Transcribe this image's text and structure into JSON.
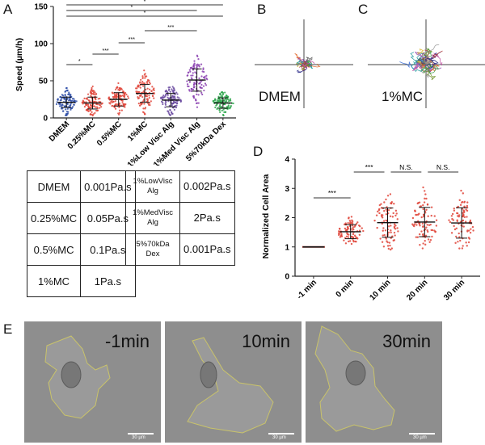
{
  "panel_labels": {
    "A": "A",
    "B": "B",
    "C": "C",
    "D": "D",
    "E": "E"
  },
  "chart_data": [
    {
      "id": "A",
      "type": "scatter",
      "title": "",
      "ylabel": "Speed (µm/h)",
      "xlabel": "",
      "ylim": [
        0,
        150
      ],
      "yticks": [
        0,
        50,
        100,
        150
      ],
      "categories": [
        "DMEM",
        "0.25%MC",
        "0.5%MC",
        "1%MC",
        "1%Low Visc Alg",
        "1%Med Visc Alg",
        "5%70kDa Dex"
      ],
      "colors": [
        "#2f4fa8",
        "#e0453a",
        "#e0453a",
        "#e0453a",
        "#6a4aa0",
        "#8a3fb0",
        "#2aa64a"
      ],
      "series": [
        {
          "name": "mean",
          "values": [
            21,
            20,
            25,
            33,
            24,
            51,
            20
          ]
        },
        {
          "name": "sd",
          "values": [
            7,
            8,
            9,
            12,
            9,
            15,
            7
          ]
        }
      ],
      "annotations": [
        {
          "from": "DMEM",
          "to": "0.25%MC",
          "label": "*"
        },
        {
          "from": "0.25%MC",
          "to": "0.5%MC",
          "label": "***"
        },
        {
          "from": "0.5%MC",
          "to": "1%MC",
          "label": "***"
        },
        {
          "from": "1%MC",
          "to": "1%Med Visc Alg",
          "label": "***"
        },
        {
          "from": "DMEM",
          "to": "5%70kDa Dex",
          "label": "*"
        },
        {
          "from": "DMEM",
          "to": "1%Med Visc Alg",
          "label": "*"
        },
        {
          "from": "DMEM",
          "to": "5%70kDa Dex",
          "label": "*"
        }
      ]
    },
    {
      "id": "D",
      "type": "scatter",
      "title": "",
      "ylabel": "Normalized Cell Area",
      "xlabel": "",
      "ylim": [
        0,
        4
      ],
      "yticks": [
        0,
        1,
        2,
        3,
        4
      ],
      "categories": [
        "-1 min",
        "0 min",
        "10 min",
        "20 min",
        "30 min"
      ],
      "series": [
        {
          "name": "mean",
          "values": [
            1.0,
            1.52,
            1.83,
            1.85,
            1.82
          ]
        },
        {
          "name": "sd",
          "values": [
            0.0,
            0.24,
            0.5,
            0.5,
            0.52
          ]
        }
      ],
      "annotations": [
        {
          "from": "-1 min",
          "to": "0 min",
          "label": "***"
        },
        {
          "from": "0 min",
          "to": "10 min",
          "label": "***"
        },
        {
          "from": "10 min",
          "to": "20 min",
          "label": "N.S."
        },
        {
          "from": "20 min",
          "to": "30 min",
          "label": "N.S."
        }
      ]
    }
  ],
  "viscosity_table": {
    "left": [
      {
        "medium": "DMEM",
        "viscosity": "0.001Pa.s"
      },
      {
        "medium": "0.25%MC",
        "viscosity": "0.05Pa.s"
      },
      {
        "medium": "0.5%MC",
        "viscosity": "0.1Pa.s"
      },
      {
        "medium": "1%MC",
        "viscosity": "1Pa.s"
      }
    ],
    "right": [
      {
        "medium_line1": "1%LowVisc",
        "medium_line2": "Alg",
        "viscosity": "0.002Pa.s"
      },
      {
        "medium_line1": "1%MedVisc",
        "medium_line2": "Alg",
        "viscosity": "2Pa.s"
      },
      {
        "medium_line1": "5%70kDa",
        "medium_line2": "Dex",
        "viscosity": "0.001Pa.s"
      }
    ]
  },
  "trajectory_plots": {
    "B": {
      "condition": "DMEM"
    },
    "C": {
      "condition": "1%MC"
    }
  },
  "micrographs": [
    {
      "time": "-1min",
      "scale_bar": "30 µm"
    },
    {
      "time": "10min",
      "scale_bar": "30 µm"
    },
    {
      "time": "30min",
      "scale_bar": "30 µm"
    }
  ]
}
